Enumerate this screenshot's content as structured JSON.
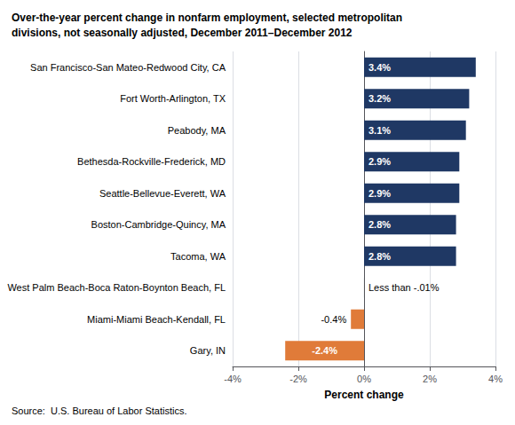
{
  "chart_data": {
    "type": "bar",
    "orientation": "horizontal",
    "title": "Over-the-year percent change in nonfarm employment, selected metropolitan\ndivisions, not seasonally adjusted, December 2011–December 2012",
    "x_label": "Percent change",
    "annotations": [
      "Source:  U.S. Bureau of Labor Statistics."
    ],
    "categories": [
      "San Francisco-San Mateo-Redwood City, CA",
      "Fort Worth-Arlington, TX",
      "Peabody, MA",
      "Bethesda-Rockville-Frederick, MD",
      "Seattle-Bellevue-Everett, WA",
      "Boston-Cambridge-Quincy, MA",
      "Tacoma, WA",
      "West Palm Beach-Boca Raton-Boynton Beach, FL",
      "Miami-Miami Beach-Kendall, FL",
      "Gary, IN"
    ],
    "values": [
      3.4,
      3.2,
      3.1,
      2.9,
      2.9,
      2.8,
      2.8,
      -0.001,
      -0.4,
      -2.4
    ],
    "value_labels": [
      "3.4%",
      "3.2%",
      "3.1%",
      "2.9%",
      "2.9%",
      "2.8%",
      "2.8%",
      "Less than -.01%",
      "-0.4%",
      "-2.4%"
    ],
    "data_labels": true,
    "colors": [
      "#1f3864",
      "#1f3864",
      "#1f3864",
      "#1f3864",
      "#1f3864",
      "#1f3864",
      "#1f3864",
      "#1f3864",
      "#e07b39",
      "#e07b39"
    ],
    "xlim": [
      -4,
      4
    ],
    "xticks": [
      {
        "value": -4,
        "label": "-4%"
      },
      {
        "value": -2,
        "label": "-2%"
      },
      {
        "value": 0,
        "label": "0%"
      },
      {
        "value": 2,
        "label": "2%"
      },
      {
        "value": 4,
        "label": "4%"
      }
    ],
    "grid": true
  }
}
